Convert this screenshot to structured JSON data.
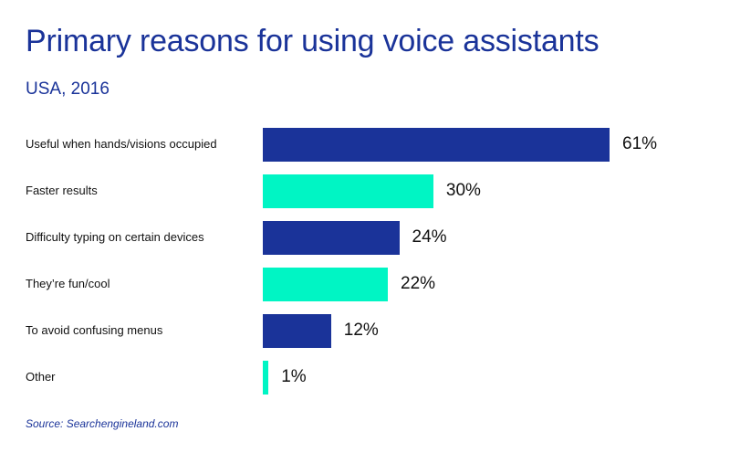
{
  "title": "Primary reasons for using voice assistants",
  "subtitle": "USA, 2016",
  "source": "Source: Searchengineland.com",
  "colors": {
    "title": "#1a3399",
    "bar_dark": "#1a3399",
    "bar_light": "#00f5c4"
  },
  "chart_data": {
    "type": "bar",
    "orientation": "horizontal",
    "title": "Primary reasons for using voice assistants",
    "subtitle": "USA, 2016",
    "categories": [
      "Useful when hands/visions occupied",
      "Faster results",
      "Difficulty typing on certain devices",
      "They’re fun/cool",
      "To avoid confusing menus",
      "Other"
    ],
    "values": [
      61,
      30,
      24,
      22,
      12,
      1
    ],
    "value_labels": [
      "61%",
      "30%",
      "24%",
      "22%",
      "12%",
      "1%"
    ],
    "bar_colors": [
      "#1a3399",
      "#00f5c4",
      "#1a3399",
      "#00f5c4",
      "#1a3399",
      "#00f5c4"
    ],
    "unit": "%",
    "grid": false,
    "legend": "none"
  }
}
